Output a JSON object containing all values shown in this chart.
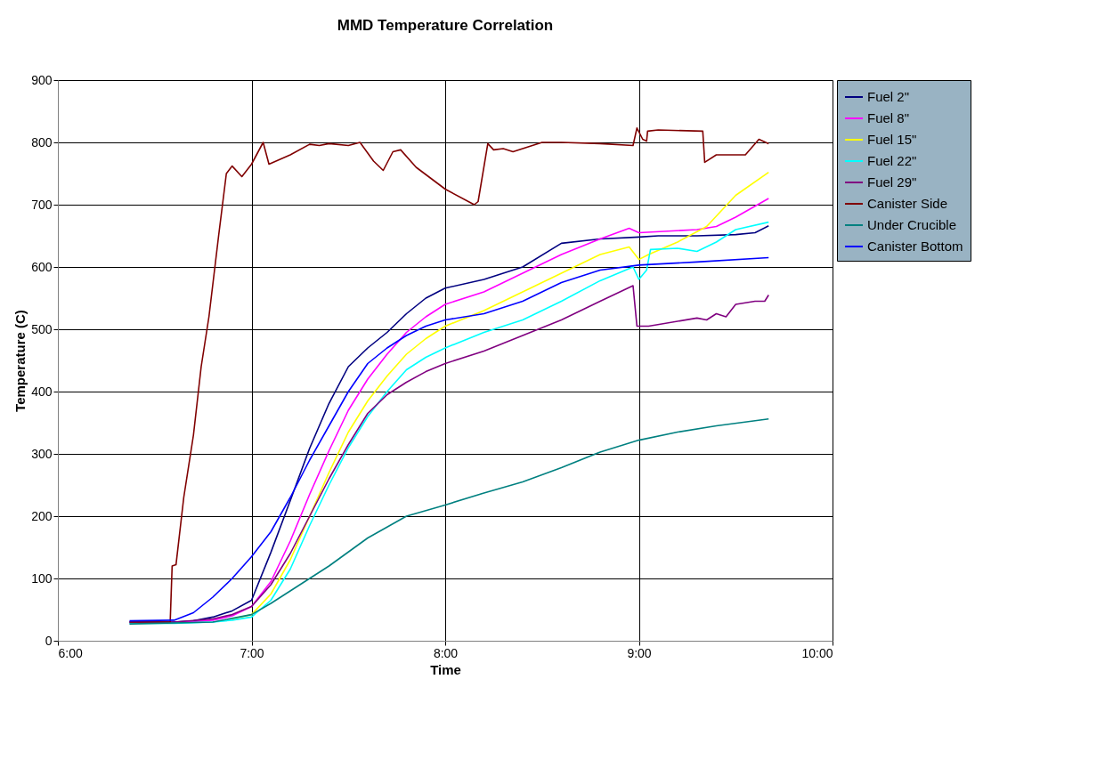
{
  "chart_data": {
    "type": "line",
    "title": "MMD Temperature Correlation",
    "xlabel": "Time",
    "ylabel": "Temperature (C)",
    "xlim": [
      6,
      10
    ],
    "xticks": [
      {
        "value": 6,
        "label": "6:00"
      },
      {
        "value": 7,
        "label": "7:00"
      },
      {
        "value": 8,
        "label": "8:00"
      },
      {
        "value": 9,
        "label": "9:00"
      },
      {
        "value": 10,
        "label": "10:00"
      }
    ],
    "ylim": [
      0,
      900
    ],
    "yticks": [
      0,
      100,
      200,
      300,
      400,
      500,
      600,
      700,
      800,
      900
    ],
    "grid": true,
    "legend": "right",
    "marker": "none",
    "line_style": "solid",
    "series": [
      {
        "name": "Fuel 2\"",
        "color": "#000080",
        "x": [
          6.37,
          6.6,
          6.7,
          6.8,
          6.9,
          7.0,
          7.1,
          7.2,
          7.3,
          7.4,
          7.5,
          7.6,
          7.7,
          7.8,
          7.9,
          8.0,
          8.2,
          8.4,
          8.6,
          8.8,
          9.0,
          9.1,
          9.3,
          9.5,
          9.6,
          9.67
        ],
        "values": [
          30,
          30,
          32,
          38,
          48,
          65,
          142,
          225,
          309,
          381,
          440,
          470,
          495,
          525,
          550,
          566,
          580,
          600,
          638,
          645,
          648,
          650,
          650,
          652,
          655,
          666
        ]
      },
      {
        "name": "Fuel 8\"",
        "color": "#ff00ff",
        "x": [
          6.37,
          6.6,
          6.8,
          6.9,
          7.0,
          7.1,
          7.2,
          7.3,
          7.4,
          7.5,
          7.6,
          7.7,
          7.8,
          7.9,
          8.0,
          8.2,
          8.4,
          8.6,
          8.8,
          8.95,
          9.0,
          9.3,
          9.4,
          9.5,
          9.67
        ],
        "values": [
          29,
          29,
          33,
          40,
          55,
          95,
          160,
          235,
          305,
          370,
          420,
          460,
          495,
          520,
          540,
          560,
          590,
          620,
          645,
          662,
          655,
          660,
          665,
          680,
          710
        ]
      },
      {
        "name": "Fuel 15\"",
        "color": "#ffff00",
        "x": [
          6.9,
          7.0,
          7.1,
          7.2,
          7.3,
          7.4,
          7.5,
          7.6,
          7.7,
          7.8,
          7.9,
          8.0,
          8.2,
          8.4,
          8.6,
          8.8,
          8.95,
          9.0,
          9.05,
          9.2,
          9.35,
          9.5,
          9.67
        ],
        "values": [
          35,
          42,
          75,
          130,
          200,
          270,
          335,
          385,
          425,
          460,
          485,
          505,
          530,
          560,
          590,
          620,
          632,
          612,
          620,
          640,
          665,
          715,
          752
        ]
      },
      {
        "name": "Fuel 22\"",
        "color": "#00ffff",
        "x": [
          6.37,
          6.6,
          6.8,
          6.9,
          7.0,
          7.1,
          7.2,
          7.3,
          7.4,
          7.5,
          7.6,
          7.7,
          7.8,
          7.9,
          8.0,
          8.2,
          8.4,
          8.6,
          8.8,
          8.97,
          9.0,
          9.04,
          9.06,
          9.2,
          9.3,
          9.4,
          9.5,
          9.67
        ],
        "values": [
          28,
          28,
          30,
          33,
          38,
          65,
          115,
          185,
          250,
          310,
          360,
          400,
          435,
          455,
          470,
          495,
          515,
          545,
          578,
          600,
          580,
          595,
          628,
          630,
          625,
          640,
          660,
          672
        ]
      },
      {
        "name": "Fuel 29\"",
        "color": "#800080",
        "x": [
          6.37,
          6.6,
          6.8,
          6.9,
          7.0,
          7.1,
          7.2,
          7.3,
          7.4,
          7.5,
          7.6,
          7.7,
          7.8,
          7.9,
          8.0,
          8.2,
          8.4,
          8.6,
          8.8,
          8.97,
          8.99,
          9.05,
          9.3,
          9.35,
          9.4,
          9.45,
          9.5,
          9.6,
          9.65,
          9.67
        ],
        "values": [
          30,
          30,
          35,
          42,
          55,
          90,
          140,
          200,
          260,
          315,
          365,
          395,
          415,
          432,
          445,
          465,
          490,
          515,
          545,
          570,
          505,
          505,
          518,
          515,
          525,
          520,
          540,
          545,
          545,
          555
        ]
      },
      {
        "name": "Canister Side",
        "color": "#800000",
        "x": [
          6.37,
          6.58,
          6.59,
          6.61,
          6.65,
          6.7,
          6.74,
          6.78,
          6.83,
          6.87,
          6.9,
          6.95,
          7.0,
          7.06,
          7.09,
          7.2,
          7.3,
          7.35,
          7.4,
          7.5,
          7.56,
          7.63,
          7.68,
          7.73,
          7.77,
          7.85,
          8.0,
          8.15,
          8.17,
          8.22,
          8.25,
          8.3,
          8.35,
          8.4,
          8.5,
          8.6,
          8.8,
          8.97,
          8.99,
          9.02,
          9.04,
          9.045,
          9.1,
          9.33,
          9.34,
          9.4,
          9.55,
          9.62,
          9.67
        ],
        "values": [
          30,
          30,
          120,
          122,
          230,
          330,
          440,
          520,
          650,
          750,
          762,
          745,
          765,
          800,
          765,
          780,
          797,
          795,
          798,
          795,
          800,
          770,
          755,
          785,
          788,
          760,
          725,
          700,
          705,
          798,
          788,
          790,
          785,
          790,
          800,
          800,
          798,
          795,
          823,
          805,
          802,
          818,
          820,
          818,
          768,
          780,
          780,
          805,
          798
        ]
      },
      {
        "name": "Under Crucible",
        "color": "#008080",
        "x": [
          6.37,
          6.8,
          7.0,
          7.1,
          7.2,
          7.4,
          7.6,
          7.8,
          8.0,
          8.2,
          8.4,
          8.6,
          8.8,
          9.0,
          9.2,
          9.4,
          9.67
        ],
        "values": [
          27,
          30,
          42,
          60,
          80,
          120,
          165,
          200,
          218,
          237,
          255,
          278,
          303,
          322,
          335,
          345,
          356
        ]
      },
      {
        "name": "Canister Bottom",
        "color": "#0000ff",
        "x": [
          6.37,
          6.6,
          6.7,
          6.8,
          6.9,
          7.0,
          7.1,
          7.2,
          7.3,
          7.4,
          7.5,
          7.6,
          7.7,
          7.8,
          7.9,
          8.0,
          8.2,
          8.4,
          8.6,
          8.8,
          9.0,
          9.3,
          9.67
        ],
        "values": [
          32,
          33,
          45,
          70,
          100,
          135,
          175,
          230,
          290,
          345,
          400,
          445,
          470,
          490,
          505,
          515,
          525,
          545,
          575,
          595,
          603,
          608,
          615
        ]
      }
    ]
  }
}
